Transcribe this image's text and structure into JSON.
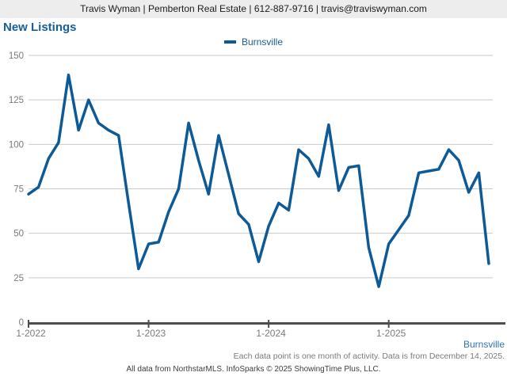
{
  "header": {
    "contact_line": "Travis Wyman | Pemberton Real Estate | 612-887-9716 | travis@traviswyman.com"
  },
  "title": "New Listings",
  "legend": {
    "label": "Burnsville"
  },
  "footer": {
    "series_label": "Burnsville",
    "note": "Each data point is one month of activity. Data is from December 14, 2025.",
    "attribution": "All data from NorthstarMLS. InfoSparks © 2025 ShowingTime Plus, LLC."
  },
  "colors": {
    "line": "#0d5a96",
    "title_blue": "#175e9b",
    "legend_blue": "#1d5a8c",
    "footer_link_blue": "#2e74b5",
    "axis_gray": "#4d4d4d",
    "grid_gray": "#c9c9c9",
    "label_gray": "#7a7a7a",
    "header_bg": "#ededed"
  },
  "chart_data": {
    "type": "line",
    "title": "New Listings",
    "legend_position": "top",
    "grid": true,
    "ylim": [
      0,
      150
    ],
    "yticks": [
      0,
      25,
      50,
      75,
      100,
      125,
      150
    ],
    "x_tick_labels": [
      "1-2022",
      "1-2023",
      "1-2024",
      "1-2025"
    ],
    "x_tick_indices": [
      0,
      12,
      24,
      36
    ],
    "categories": [
      "1-2022",
      "2-2022",
      "3-2022",
      "4-2022",
      "5-2022",
      "6-2022",
      "7-2022",
      "8-2022",
      "9-2022",
      "10-2022",
      "11-2022",
      "12-2022",
      "1-2023",
      "2-2023",
      "3-2023",
      "4-2023",
      "5-2023",
      "6-2023",
      "7-2023",
      "8-2023",
      "9-2023",
      "10-2023",
      "11-2023",
      "12-2023",
      "1-2024",
      "2-2024",
      "3-2024",
      "4-2024",
      "5-2024",
      "6-2024",
      "7-2024",
      "8-2024",
      "9-2024",
      "10-2024",
      "11-2024",
      "12-2024",
      "1-2025",
      "2-2025",
      "3-2025",
      "4-2025",
      "5-2025",
      "6-2025",
      "7-2025",
      "8-2025",
      "9-2025",
      "10-2025",
      "11-2025"
    ],
    "series": [
      {
        "name": "Burnsville",
        "values": [
          72,
          76,
          92,
          101,
          139,
          108,
          125,
          112,
          108,
          105,
          67,
          30,
          44,
          45,
          62,
          75,
          112,
          91,
          72,
          105,
          83,
          61,
          55,
          34,
          54,
          67,
          63,
          97,
          92,
          82,
          111,
          74,
          87,
          88,
          42,
          20,
          44,
          52,
          60,
          84,
          85,
          86,
          97,
          91,
          73,
          84,
          33
        ]
      }
    ]
  }
}
